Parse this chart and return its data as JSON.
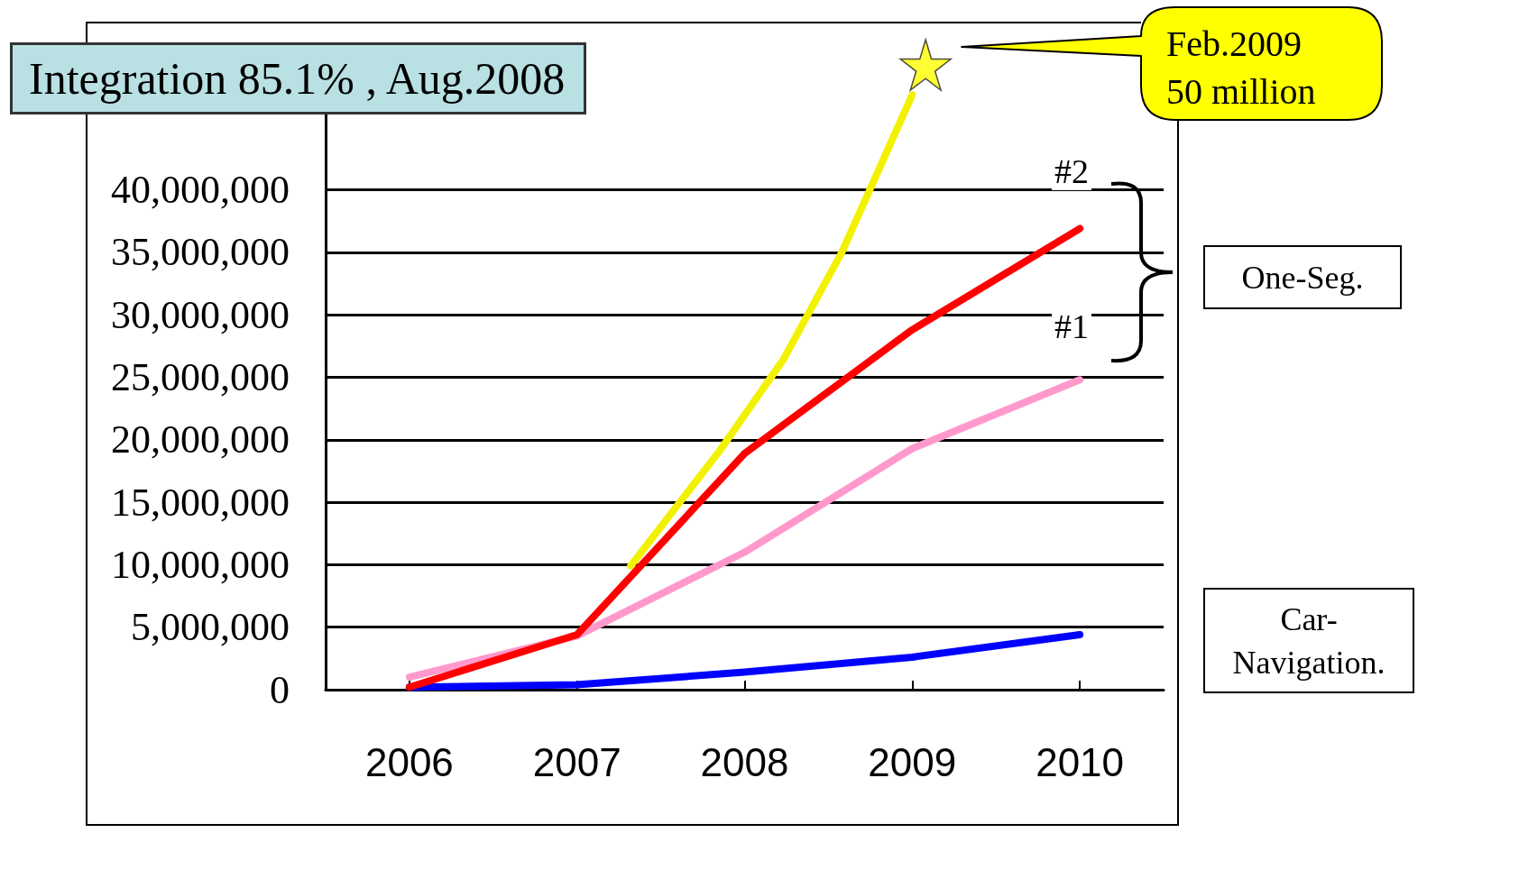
{
  "chart_data": {
    "type": "line",
    "title": "Integration 85.1% , Aug.2008",
    "x": [
      2006,
      2007,
      2008,
      2009,
      2010
    ],
    "xlim": [
      2005.5,
      2010.5
    ],
    "xticks": [
      2006,
      2007,
      2008,
      2009,
      2010
    ],
    "ylim": [
      0,
      50000000
    ],
    "yticks": [
      0,
      {
        "value": 5000000,
        "label": "5,000,000"
      },
      {
        "value": 10000000,
        "label": "10,000,000"
      },
      {
        "value": 15000000,
        "label": "15,000,000"
      },
      {
        "value": 20000000,
        "label": "20,000,000"
      },
      {
        "value": 25000000,
        "label": "25,000,000"
      },
      {
        "value": 30000000,
        "label": "30,000,000"
      },
      {
        "value": 35000000,
        "label": "35,000,000"
      },
      {
        "value": 40000000,
        "label": "40,000,000"
      }
    ],
    "grid": "y",
    "marker": "none",
    "line_style": "solid",
    "series": [
      {
        "color": "#ff99cc",
        "values": [
          1000000,
          4300000,
          11000000,
          19300000,
          24800000
        ]
      },
      {
        "color": "#0000ff",
        "values": [
          200000,
          400000,
          1400000,
          2600000,
          4400000
        ]
      },
      {
        "color": "#f2f200",
        "x": [
          2007.32,
          2007.85,
          2008.23,
          2008.58,
          2009
        ],
        "values": [
          9900000,
          19100000,
          26400000,
          35000000,
          47600000
        ]
      },
      {
        "color": "#ff0000",
        "values": [
          200000,
          4400000,
          18900000,
          28800000,
          36900000
        ]
      },
      {
        "type": "scatter",
        "marker": "star",
        "color": "#ffff00",
        "x": [
          2009.08
        ],
        "values": [
          50000000
        ]
      }
    ],
    "annotations": [
      "Feb.2009\n50 million",
      "#2",
      "#1",
      "One-Seg.",
      "Car-\nNavigation."
    ]
  }
}
